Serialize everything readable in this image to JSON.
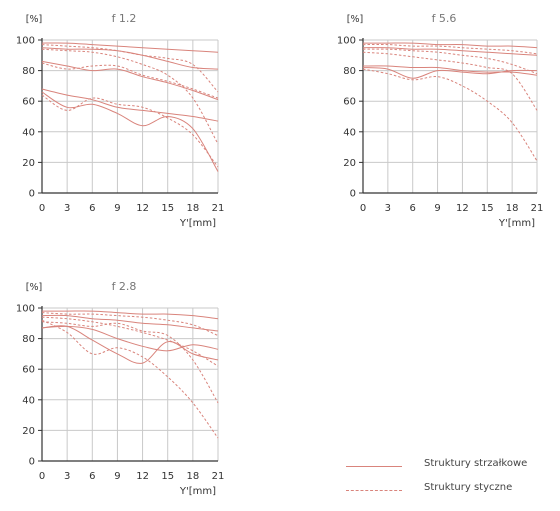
{
  "chart_data": [
    {
      "type": "line",
      "title": "f 1.2",
      "ylabel": "[%]",
      "xlabel": "Y'[mm]",
      "xlim": [
        0,
        21
      ],
      "ylim": [
        0,
        100
      ],
      "x_ticks": [
        "0",
        "3",
        "6",
        "9",
        "12",
        "15",
        "18",
        "21"
      ],
      "y_ticks": [
        "0",
        "20",
        "40",
        "60",
        "80",
        "100"
      ],
      "grid": true,
      "series": [
        {
          "style": "solid",
          "x": [
            0,
            3,
            6,
            9,
            12,
            15,
            18,
            21
          ],
          "y": [
            98,
            98,
            97,
            96,
            95,
            94,
            93,
            92
          ]
        },
        {
          "style": "dashed",
          "x": [
            0,
            3,
            6,
            9,
            12,
            15,
            18,
            21
          ],
          "y": [
            97,
            96,
            95,
            93,
            90,
            88,
            84,
            66
          ]
        },
        {
          "style": "solid",
          "x": [
            0,
            3,
            6,
            9,
            12,
            15,
            18,
            21
          ],
          "y": [
            95,
            94,
            94,
            93,
            90,
            86,
            82,
            81
          ]
        },
        {
          "style": "dashed",
          "x": [
            0,
            3,
            6,
            9,
            12,
            15,
            18,
            21
          ],
          "y": [
            94,
            93,
            92,
            89,
            84,
            77,
            62,
            32
          ]
        },
        {
          "style": "solid",
          "x": [
            0,
            3,
            6,
            9,
            12,
            15,
            18,
            21
          ],
          "y": [
            86,
            83,
            80,
            81,
            76,
            72,
            67,
            61
          ]
        },
        {
          "style": "dashed",
          "x": [
            0,
            3,
            6,
            9,
            12,
            15,
            18,
            21
          ],
          "y": [
            85,
            81,
            83,
            83,
            77,
            73,
            68,
            62
          ]
        },
        {
          "style": "solid",
          "x": [
            0,
            3,
            6,
            9,
            12,
            15,
            18,
            21
          ],
          "y": [
            68,
            64,
            61,
            56,
            54,
            52,
            50,
            47
          ]
        },
        {
          "style": "solid",
          "x": [
            0,
            3,
            6,
            9,
            12,
            15,
            18,
            21
          ],
          "y": [
            66,
            56,
            58,
            52,
            44,
            50,
            42,
            14
          ]
        },
        {
          "style": "dashed",
          "x": [
            0,
            3,
            6,
            9,
            12,
            15,
            18,
            21
          ],
          "y": [
            64,
            54,
            62,
            58,
            56,
            49,
            38,
            17
          ]
        }
      ]
    },
    {
      "type": "line",
      "title": "f 5.6",
      "ylabel": "[%]",
      "xlabel": "Y'[mm]",
      "xlim": [
        0,
        21
      ],
      "ylim": [
        0,
        100
      ],
      "x_ticks": [
        "0",
        "3",
        "6",
        "9",
        "12",
        "15",
        "18",
        "21"
      ],
      "y_ticks": [
        "0",
        "20",
        "40",
        "60",
        "80",
        "100"
      ],
      "grid": true,
      "series": [
        {
          "style": "solid",
          "x": [
            0,
            3,
            6,
            9,
            12,
            15,
            18,
            21
          ],
          "y": [
            98,
            98,
            98,
            97,
            97,
            96,
            96,
            95
          ]
        },
        {
          "style": "dashed",
          "x": [
            0,
            3,
            6,
            9,
            12,
            15,
            18,
            21
          ],
          "y": [
            97,
            97,
            96,
            96,
            95,
            94,
            93,
            91
          ]
        },
        {
          "style": "solid",
          "x": [
            0,
            3,
            6,
            9,
            12,
            15,
            18,
            21
          ],
          "y": [
            95,
            95,
            94,
            94,
            93,
            92,
            91,
            90
          ]
        },
        {
          "style": "dashed",
          "x": [
            0,
            3,
            6,
            9,
            12,
            15,
            18,
            21
          ],
          "y": [
            94,
            94,
            93,
            92,
            90,
            88,
            84,
            78
          ]
        },
        {
          "style": "dashed",
          "x": [
            0,
            3,
            6,
            9,
            12,
            15,
            18,
            21
          ],
          "y": [
            92,
            91,
            89,
            87,
            85,
            82,
            78,
            54
          ]
        },
        {
          "style": "solid",
          "x": [
            0,
            3,
            6,
            9,
            12,
            15,
            18,
            21
          ],
          "y": [
            83,
            83,
            82,
            82,
            80,
            79,
            79,
            77
          ]
        },
        {
          "style": "solid",
          "x": [
            0,
            3,
            6,
            9,
            12,
            15,
            18,
            21
          ],
          "y": [
            82,
            81,
            75,
            80,
            79,
            78,
            80,
            80
          ]
        },
        {
          "style": "dashed",
          "x": [
            0,
            3,
            6,
            9,
            12,
            15,
            18,
            21
          ],
          "y": [
            81,
            78,
            74,
            76,
            70,
            60,
            46,
            21
          ]
        }
      ]
    },
    {
      "type": "line",
      "title": "f 2.8",
      "ylabel": "[%]",
      "xlabel": "Y'[mm]",
      "xlim": [
        0,
        21
      ],
      "ylim": [
        0,
        100
      ],
      "x_ticks": [
        "0",
        "3",
        "6",
        "9",
        "12",
        "15",
        "18",
        "21"
      ],
      "y_ticks": [
        "0",
        "20",
        "40",
        "60",
        "80",
        "100"
      ],
      "grid": true,
      "series": [
        {
          "style": "solid",
          "x": [
            0,
            3,
            6,
            9,
            12,
            15,
            18,
            21
          ],
          "y": [
            98,
            98,
            98,
            97,
            96,
            96,
            95,
            93
          ]
        },
        {
          "style": "dashed",
          "x": [
            0,
            3,
            6,
            9,
            12,
            15,
            18,
            21
          ],
          "y": [
            97,
            96,
            96,
            95,
            94,
            92,
            89,
            82
          ]
        },
        {
          "style": "solid",
          "x": [
            0,
            3,
            6,
            9,
            12,
            15,
            18,
            21
          ],
          "y": [
            95,
            95,
            93,
            92,
            90,
            89,
            87,
            85
          ]
        },
        {
          "style": "dashed",
          "x": [
            0,
            3,
            6,
            9,
            12,
            15,
            18,
            21
          ],
          "y": [
            94,
            93,
            91,
            88,
            84,
            79,
            72,
            62
          ]
        },
        {
          "style": "solid",
          "x": [
            0,
            3,
            6,
            9,
            12,
            15,
            18,
            21
          ],
          "y": [
            87,
            88,
            86,
            80,
            75,
            72,
            76,
            73
          ]
        },
        {
          "style": "solid",
          "x": [
            0,
            3,
            6,
            9,
            12,
            15,
            18,
            21
          ],
          "y": [
            87,
            88,
            79,
            70,
            64,
            78,
            70,
            66
          ]
        },
        {
          "style": "dashed",
          "x": [
            0,
            3,
            6,
            9,
            12,
            15,
            18,
            21
          ],
          "y": [
            92,
            84,
            70,
            74,
            68,
            55,
            38,
            15
          ]
        },
        {
          "style": "dashed",
          "x": [
            0,
            3,
            6,
            9,
            12,
            15,
            18,
            21
          ],
          "y": [
            91,
            90,
            88,
            90,
            85,
            82,
            66,
            38
          ]
        }
      ]
    }
  ],
  "legend": {
    "solid_label": "Struktury strzałkowe",
    "dashed_label": "Struktury styczne"
  },
  "colors": {
    "series": "#d9847c",
    "grid": "#c9c9c9",
    "axis": "#333333"
  }
}
